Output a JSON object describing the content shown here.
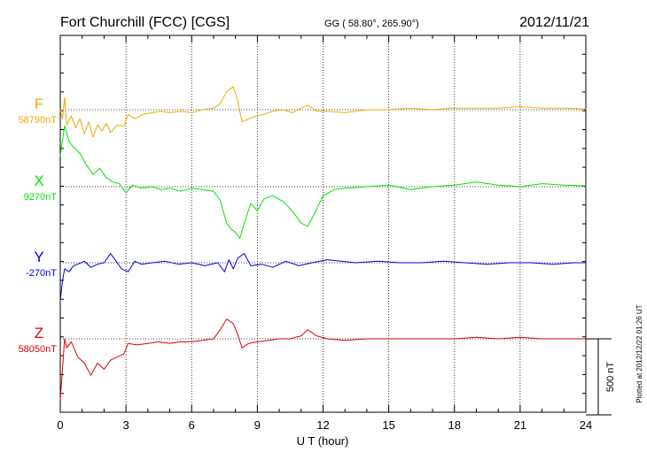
{
  "header": {
    "station": "Fort Churchill (FCC)  [CGS]",
    "coords": "GG ( 58.80°, 265.90°)",
    "date": "2012/11/21"
  },
  "footer": {
    "plotted": "Plotted at 2012/12/22 01:26 UT"
  },
  "chart_data": {
    "type": "line",
    "xlabel": "U T (hour)",
    "xlim": [
      0,
      24
    ],
    "x_ticks": [
      "0",
      "3",
      "6",
      "9",
      "12",
      "15",
      "18",
      "21",
      "24"
    ],
    "grid": "vertical dotted at every 3 hours; dotted baseline per component",
    "scale_bar_label": "500 nT",
    "scale_bar_value_nT": 500,
    "series": [
      {
        "name": "F",
        "baseline_label": "58790nT",
        "color": "#f5a800",
        "points": [
          [
            0,
            0
          ],
          [
            0.1,
            -60
          ],
          [
            0.2,
            80
          ],
          [
            0.3,
            -100
          ],
          [
            0.5,
            -40
          ],
          [
            0.7,
            -120
          ],
          [
            0.9,
            -60
          ],
          [
            1.1,
            -160
          ],
          [
            1.3,
            -80
          ],
          [
            1.5,
            -180
          ],
          [
            1.7,
            -100
          ],
          [
            1.9,
            -140
          ],
          [
            2.1,
            -90
          ],
          [
            2.3,
            -150
          ],
          [
            2.6,
            -100
          ],
          [
            2.9,
            -110
          ],
          [
            3.1,
            -30
          ],
          [
            3.4,
            -60
          ],
          [
            3.8,
            -30
          ],
          [
            4.2,
            -20
          ],
          [
            4.6,
            -10
          ],
          [
            5.0,
            -20
          ],
          [
            5.5,
            -10
          ],
          [
            6.0,
            -20
          ],
          [
            6.5,
            0
          ],
          [
            7.0,
            10
          ],
          [
            7.3,
            40
          ],
          [
            7.6,
            120
          ],
          [
            7.9,
            150
          ],
          [
            8.1,
            60
          ],
          [
            8.3,
            -80
          ],
          [
            8.6,
            -60
          ],
          [
            9.0,
            -40
          ],
          [
            9.3,
            -30
          ],
          [
            9.7,
            -10
          ],
          [
            10.2,
            0
          ],
          [
            10.6,
            -20
          ],
          [
            11.0,
            10
          ],
          [
            11.3,
            30
          ],
          [
            11.7,
            -10
          ],
          [
            12.2,
            -10
          ],
          [
            13.0,
            -20
          ],
          [
            14.0,
            0
          ],
          [
            15.0,
            0
          ],
          [
            16.0,
            10
          ],
          [
            17.0,
            0
          ],
          [
            18.0,
            10
          ],
          [
            19.0,
            10
          ],
          [
            20.0,
            10
          ],
          [
            21.0,
            20
          ],
          [
            22.0,
            10
          ],
          [
            23.0,
            10
          ],
          [
            24.0,
            5
          ]
        ]
      },
      {
        "name": "X",
        "baseline_label": "9270nT",
        "color": "#00e600",
        "points": [
          [
            0,
            200
          ],
          [
            0.2,
            400
          ],
          [
            0.4,
            300
          ],
          [
            0.6,
            260
          ],
          [
            0.9,
            220
          ],
          [
            1.2,
            140
          ],
          [
            1.5,
            80
          ],
          [
            1.8,
            120
          ],
          [
            2.1,
            60
          ],
          [
            2.4,
            30
          ],
          [
            2.7,
            20
          ],
          [
            3.0,
            -40
          ],
          [
            3.3,
            10
          ],
          [
            3.7,
            -10
          ],
          [
            4.2,
            0
          ],
          [
            4.6,
            -20
          ],
          [
            5.0,
            -10
          ],
          [
            5.5,
            -30
          ],
          [
            6.0,
            -10
          ],
          [
            6.5,
            -20
          ],
          [
            7.0,
            -30
          ],
          [
            7.3,
            -90
          ],
          [
            7.6,
            -240
          ],
          [
            7.8,
            -280
          ],
          [
            8.0,
            -300
          ],
          [
            8.2,
            -340
          ],
          [
            8.4,
            -240
          ],
          [
            8.7,
            -110
          ],
          [
            9.0,
            -160
          ],
          [
            9.3,
            -80
          ],
          [
            9.7,
            -60
          ],
          [
            10.2,
            -100
          ],
          [
            10.6,
            -160
          ],
          [
            11.0,
            -240
          ],
          [
            11.3,
            -260
          ],
          [
            11.6,
            -180
          ],
          [
            12.0,
            -60
          ],
          [
            12.5,
            -20
          ],
          [
            13.0,
            -10
          ],
          [
            14.0,
            0
          ],
          [
            15.0,
            10
          ],
          [
            16.0,
            -20
          ],
          [
            17.0,
            0
          ],
          [
            18.0,
            10
          ],
          [
            19.0,
            30
          ],
          [
            20.0,
            10
          ],
          [
            21.0,
            0
          ],
          [
            22.0,
            20
          ],
          [
            23.0,
            10
          ],
          [
            24.0,
            5
          ]
        ]
      },
      {
        "name": "Y",
        "baseline_label": "-270nT",
        "color": "#0000e0",
        "points": [
          [
            0,
            -250
          ],
          [
            0.1,
            -120
          ],
          [
            0.2,
            -40
          ],
          [
            0.4,
            -60
          ],
          [
            0.6,
            -20
          ],
          [
            0.8,
            -10
          ],
          [
            1.1,
            10
          ],
          [
            1.4,
            -30
          ],
          [
            1.7,
            -10
          ],
          [
            2.0,
            0
          ],
          [
            2.3,
            60
          ],
          [
            2.5,
            20
          ],
          [
            2.8,
            -40
          ],
          [
            3.1,
            -60
          ],
          [
            3.4,
            10
          ],
          [
            3.7,
            -10
          ],
          [
            4.2,
            0
          ],
          [
            4.8,
            10
          ],
          [
            5.4,
            -10
          ],
          [
            6.0,
            0
          ],
          [
            6.6,
            -20
          ],
          [
            7.2,
            0
          ],
          [
            7.5,
            -60
          ],
          [
            7.7,
            20
          ],
          [
            7.9,
            -40
          ],
          [
            8.1,
            30
          ],
          [
            8.4,
            60
          ],
          [
            8.7,
            -20
          ],
          [
            9.2,
            -10
          ],
          [
            9.7,
            -30
          ],
          [
            10.3,
            10
          ],
          [
            10.9,
            -20
          ],
          [
            11.5,
            0
          ],
          [
            12.2,
            20
          ],
          [
            12.8,
            10
          ],
          [
            13.5,
            0
          ],
          [
            14.5,
            10
          ],
          [
            15.5,
            0
          ],
          [
            16.5,
            0
          ],
          [
            17.5,
            10
          ],
          [
            18.5,
            0
          ],
          [
            19.5,
            -10
          ],
          [
            20.5,
            0
          ],
          [
            21.5,
            0
          ],
          [
            22.5,
            -10
          ],
          [
            23.5,
            0
          ],
          [
            24.0,
            0
          ]
        ]
      },
      {
        "name": "Z",
        "baseline_label": "58050nT",
        "color": "#e00000",
        "points": [
          [
            0,
            -400
          ],
          [
            0.1,
            -200
          ],
          [
            0.2,
            0
          ],
          [
            0.3,
            -60
          ],
          [
            0.5,
            -20
          ],
          [
            0.8,
            -120
          ],
          [
            1.1,
            -160
          ],
          [
            1.4,
            -240
          ],
          [
            1.7,
            -160
          ],
          [
            2.0,
            -200
          ],
          [
            2.3,
            -140
          ],
          [
            2.6,
            -120
          ],
          [
            2.9,
            -100
          ],
          [
            3.1,
            -30
          ],
          [
            3.5,
            -40
          ],
          [
            4.0,
            -30
          ],
          [
            4.5,
            -20
          ],
          [
            5.0,
            -30
          ],
          [
            5.5,
            -20
          ],
          [
            6.0,
            -20
          ],
          [
            6.5,
            -10
          ],
          [
            7.0,
            0
          ],
          [
            7.3,
            60
          ],
          [
            7.6,
            130
          ],
          [
            7.9,
            100
          ],
          [
            8.1,
            30
          ],
          [
            8.3,
            -60
          ],
          [
            8.6,
            -30
          ],
          [
            9.0,
            -20
          ],
          [
            9.5,
            -10
          ],
          [
            10.0,
            0
          ],
          [
            10.5,
            0
          ],
          [
            11.0,
            20
          ],
          [
            11.3,
            60
          ],
          [
            11.7,
            20
          ],
          [
            12.2,
            0
          ],
          [
            13.0,
            -10
          ],
          [
            14.0,
            0
          ],
          [
            15.0,
            0
          ],
          [
            16.0,
            0
          ],
          [
            17.0,
            0
          ],
          [
            18.0,
            0
          ],
          [
            19.0,
            10
          ],
          [
            20.0,
            0
          ],
          [
            21.0,
            10
          ],
          [
            22.0,
            0
          ],
          [
            23.0,
            0
          ],
          [
            24.0,
            0
          ]
        ]
      }
    ]
  }
}
